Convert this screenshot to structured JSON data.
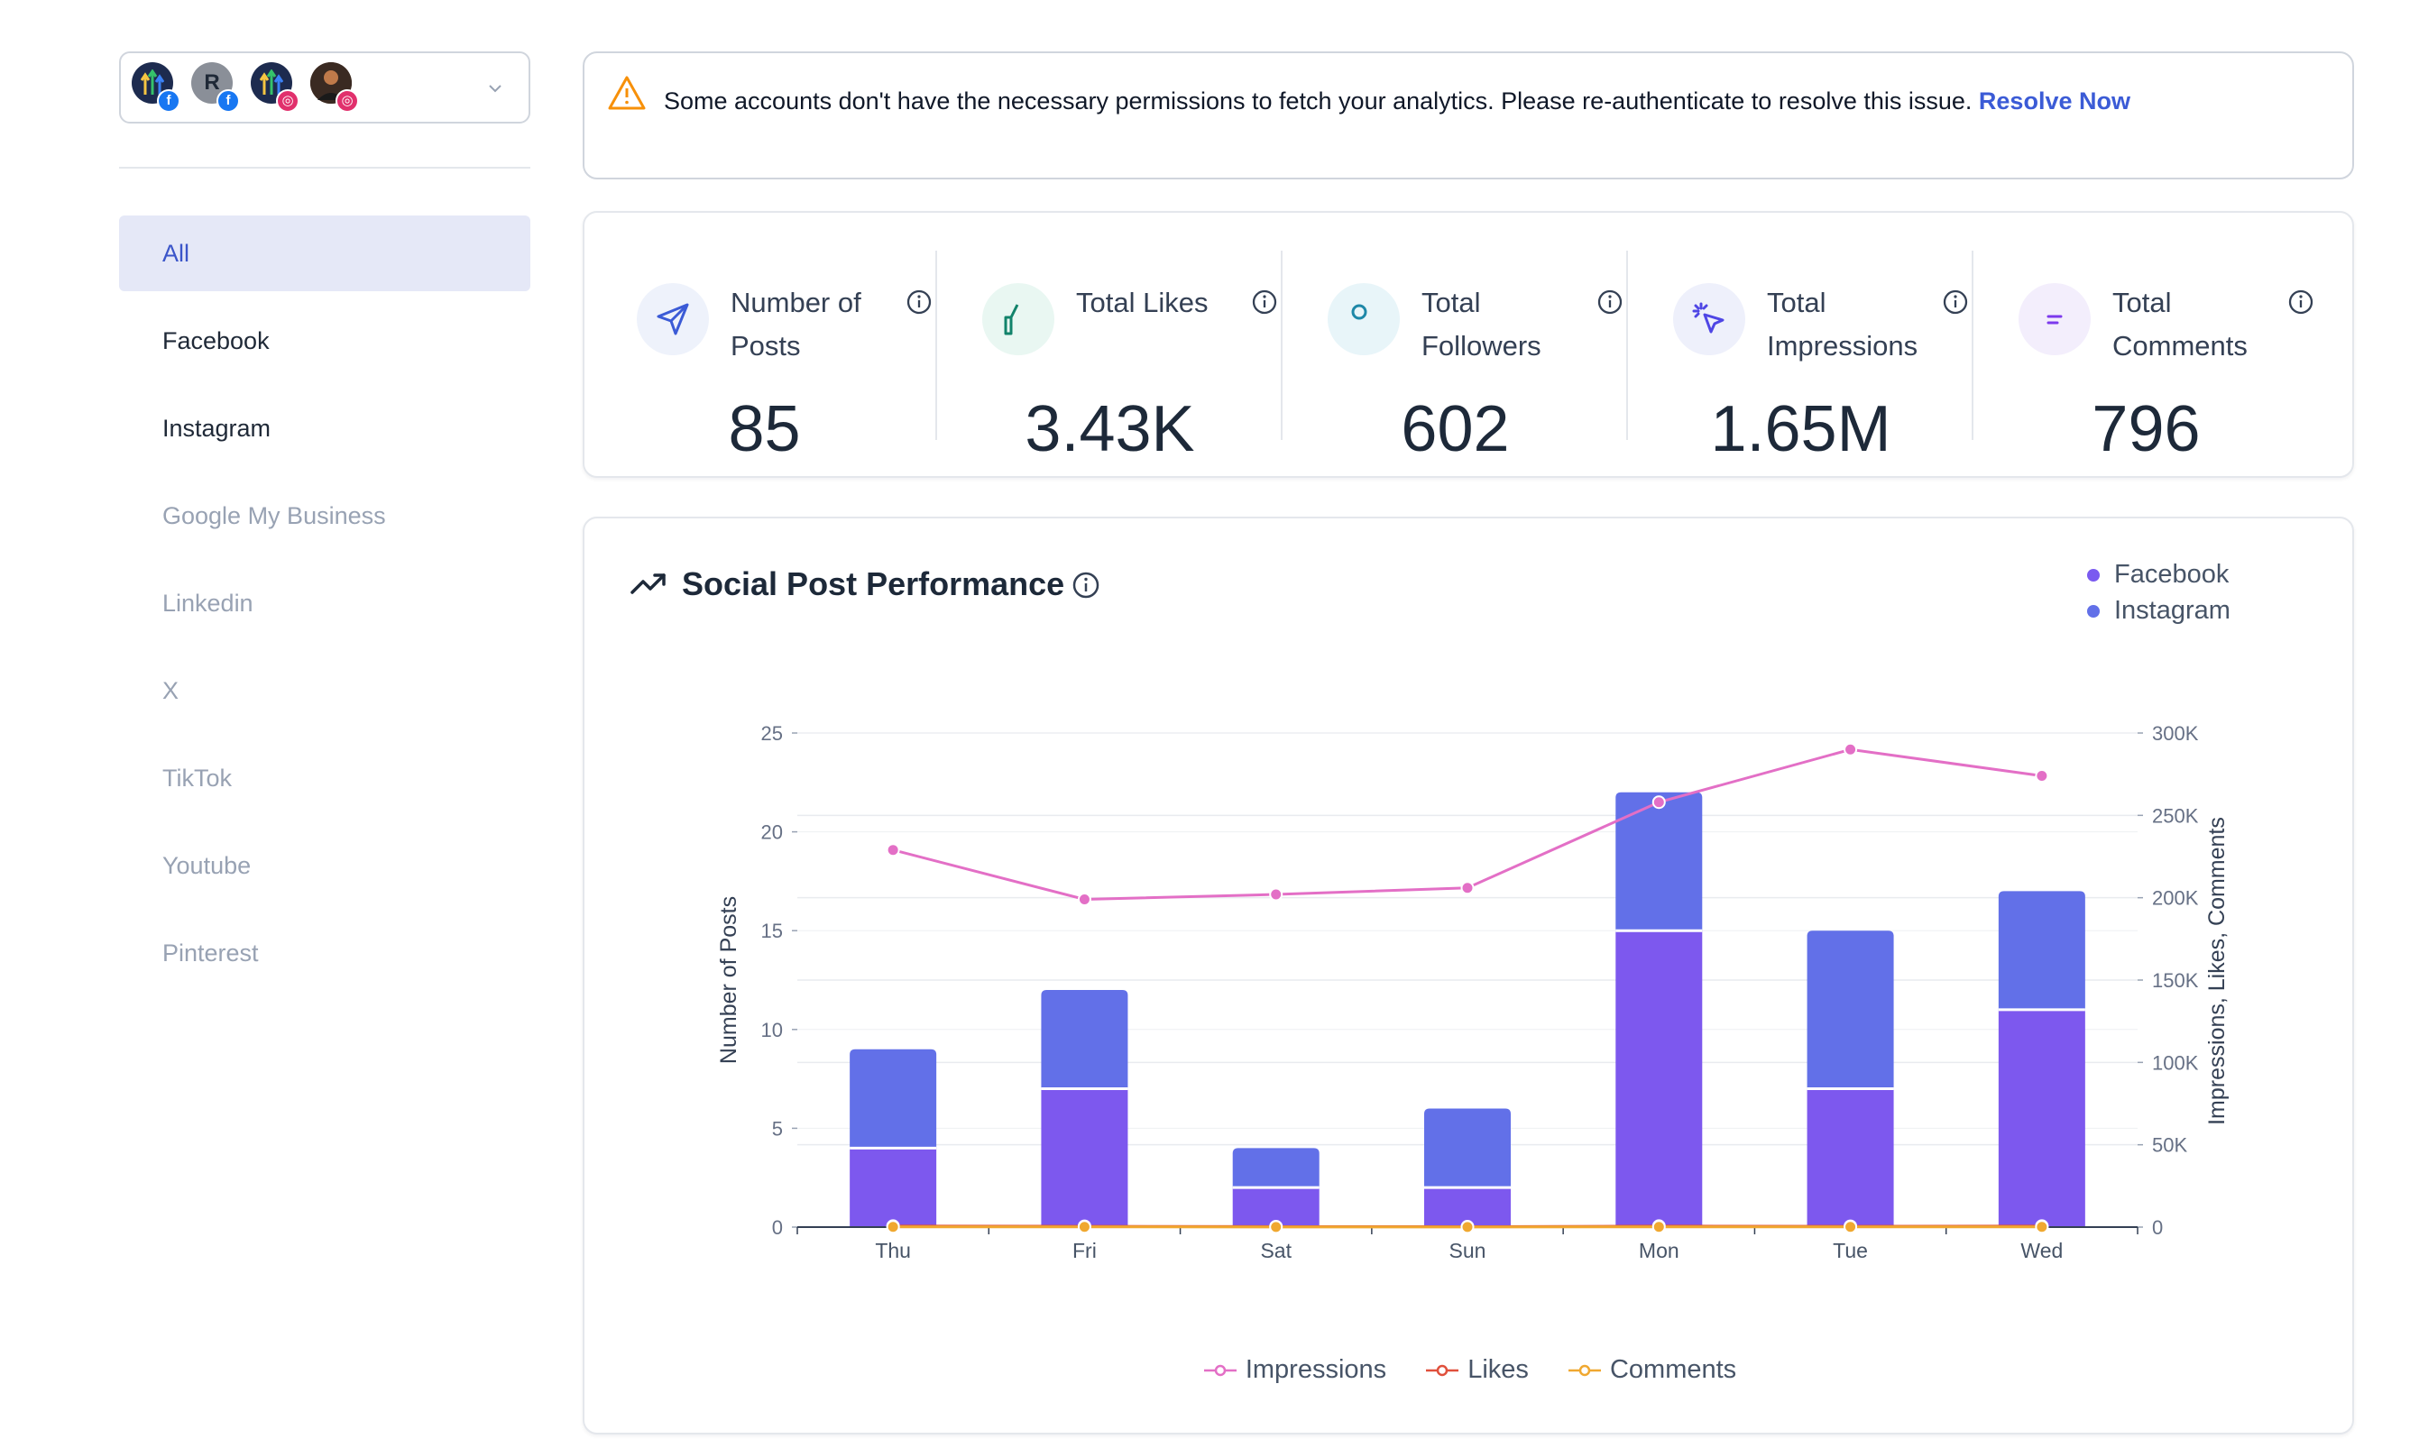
{
  "sidebar": {
    "avatars": [
      {
        "initial": "",
        "platform": "facebook"
      },
      {
        "initial": "R",
        "platform": "facebook"
      },
      {
        "initial": "",
        "platform": "instagram"
      },
      {
        "initial": "",
        "platform": "instagram"
      }
    ],
    "items": [
      {
        "label": "All",
        "state": "active"
      },
      {
        "label": "Facebook",
        "state": "enabled"
      },
      {
        "label": "Instagram",
        "state": "enabled"
      },
      {
        "label": "Google My Business",
        "state": "disabled"
      },
      {
        "label": "Linkedin",
        "state": "disabled"
      },
      {
        "label": "X",
        "state": "disabled"
      },
      {
        "label": "TikTok",
        "state": "disabled"
      },
      {
        "label": "Youtube",
        "state": "disabled"
      },
      {
        "label": "Pinterest",
        "state": "disabled"
      }
    ]
  },
  "alert": {
    "message": "Some accounts don't have the necessary permissions to fetch your analytics. Please re-authenticate to resolve this issue.",
    "link": "Resolve Now"
  },
  "stats": [
    {
      "label": "Number of Posts",
      "value": "85",
      "icon": "send-icon",
      "icon_color": "#3b5bd6",
      "bg": "#eef2fb"
    },
    {
      "label": "Total Likes",
      "value": "3.43K",
      "icon": "thumbs-up-icon",
      "icon_color": "#12836b",
      "bg": "#e9f7f2"
    },
    {
      "label": "Total Followers",
      "value": "602",
      "icon": "users-icon",
      "icon_color": "#1e88a8",
      "bg": "#e8f5f9"
    },
    {
      "label": "Total Impressions",
      "value": "1.65M",
      "icon": "cursor-click-icon",
      "icon_color": "#4f46e5",
      "bg": "#eef0fb"
    },
    {
      "label": "Total Comments",
      "value": "796",
      "icon": "message-circle-icon",
      "icon_color": "#7c3aed",
      "bg": "#f3eefc"
    }
  ],
  "chart_card": {
    "title": "Social Post Performance",
    "legend_top": [
      {
        "name": "Facebook",
        "color": "#7a5af0"
      },
      {
        "name": "Instagram",
        "color": "#6270e8"
      }
    ],
    "legend_bottom": [
      {
        "name": "Impressions",
        "color": "#e36fc6"
      },
      {
        "name": "Likes",
        "color": "#e0503c"
      },
      {
        "name": "Comments",
        "color": "#f0a830"
      }
    ]
  },
  "chart_data": {
    "type": "bar",
    "stacked": true,
    "categories": [
      "Thu",
      "Fri",
      "Sat",
      "Sun",
      "Mon",
      "Tue",
      "Wed"
    ],
    "series": [
      {
        "name": "Facebook",
        "axis": "left",
        "values": [
          4,
          7,
          2,
          2,
          15,
          7,
          11
        ],
        "color": "#7d58ee"
      },
      {
        "name": "Instagram",
        "axis": "left",
        "values": [
          5,
          5,
          2,
          4,
          7,
          8,
          6
        ],
        "color": "#6270e8"
      },
      {
        "name": "Impressions",
        "type": "line",
        "axis": "right",
        "values": [
          229000,
          199000,
          202000,
          206000,
          258000,
          290000,
          274000
        ],
        "color": "#e36fc6"
      },
      {
        "name": "Likes",
        "type": "line",
        "axis": "right",
        "values": [
          600,
          500,
          300,
          250,
          600,
          500,
          600
        ],
        "color": "#e0503c"
      },
      {
        "name": "Comments",
        "type": "line",
        "axis": "right",
        "values": [
          150,
          120,
          80,
          70,
          140,
          120,
          130
        ],
        "color": "#f0a830"
      }
    ],
    "ylabel": "Number of Posts",
    "y2label": "Impressions, Likes, Comments",
    "ylim": [
      0,
      25
    ],
    "yticks": [
      0,
      5,
      10,
      15,
      20,
      25
    ],
    "y2lim": [
      0,
      300000
    ],
    "y2ticks": [
      0,
      50000,
      100000,
      150000,
      200000,
      250000,
      300000
    ],
    "y2tick_labels": [
      "0",
      "50K",
      "100K",
      "150K",
      "200K",
      "250K",
      "300K"
    ],
    "grid": true
  }
}
